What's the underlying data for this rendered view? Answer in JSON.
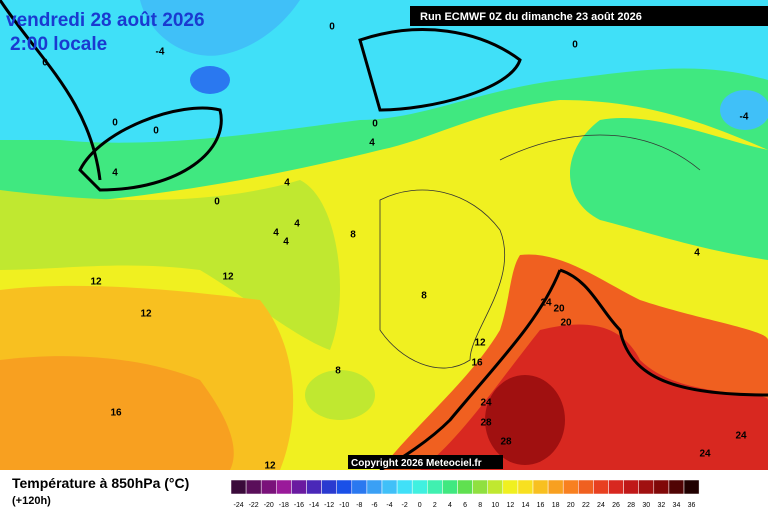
{
  "map": {
    "title": "vendredi 28 août 2026",
    "time": "2:00 locale",
    "run": "Run ECMWF 0Z du dimanche 23 août 2026",
    "copyright": "Copyright 2026 Meteociel.fr",
    "variable": "Température à 850hPa (°C)",
    "lead": "(+120h)",
    "contour_labels": [
      0,
      -4,
      0,
      0,
      0,
      0,
      0,
      4,
      -4,
      4,
      4,
      0,
      4,
      4,
      4,
      8,
      12,
      12,
      8,
      12,
      24,
      20,
      20,
      4,
      12,
      16,
      8,
      16,
      24,
      28,
      28,
      24,
      24,
      12
    ],
    "colorbar": {
      "ticks": [
        -24,
        -22,
        -20,
        -18,
        -16,
        -14,
        -12,
        -10,
        -8,
        -6,
        -4,
        -2,
        0,
        2,
        4,
        6,
        8,
        10,
        12,
        14,
        16,
        18,
        20,
        22,
        24,
        26,
        28,
        30,
        32,
        34,
        36
      ],
      "colors": [
        "#3a0a3a",
        "#5a0f5a",
        "#7a127a",
        "#9a1a9a",
        "#6a1aa0",
        "#4a28b8",
        "#2a3ad0",
        "#1a50e8",
        "#2a78f0",
        "#3aa0f5",
        "#40c0f8",
        "#40e0f8",
        "#40f0e0",
        "#40f0b0",
        "#40e880",
        "#60e050",
        "#90e040",
        "#c0e830",
        "#f0f020",
        "#f8e020",
        "#f8c020",
        "#f8a020",
        "#f88020",
        "#f06020",
        "#e84020",
        "#d82820",
        "#c01818",
        "#a01010",
        "#800808",
        "#500404",
        "#200000"
      ]
    }
  }
}
